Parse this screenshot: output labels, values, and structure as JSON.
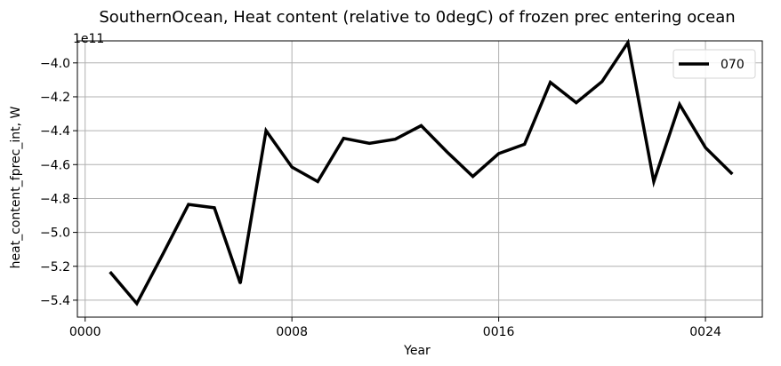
{
  "chart_data": {
    "type": "line",
    "title": "SouthernOcean, Heat content (relative to 0degC) of frozen prec entering ocean",
    "xlabel": "Year",
    "ylabel": "heat_content_fprec_int, W",
    "y_offset_text": "1e11",
    "xlim": [
      -0.3,
      26.2
    ],
    "ylim": [
      -5.5,
      -3.87
    ],
    "x_ticks": [
      {
        "value": 0,
        "label": "0000"
      },
      {
        "value": 8,
        "label": "0008"
      },
      {
        "value": 16,
        "label": "0016"
      },
      {
        "value": 24,
        "label": "0024"
      }
    ],
    "y_ticks": [
      {
        "value": -4.0,
        "label": "−4.0"
      },
      {
        "value": -4.2,
        "label": "−4.2"
      },
      {
        "value": -4.4,
        "label": "−4.4"
      },
      {
        "value": -4.6,
        "label": "−4.6"
      },
      {
        "value": -4.8,
        "label": "−4.8"
      },
      {
        "value": -5.0,
        "label": "−5.0"
      },
      {
        "value": -5.2,
        "label": "−5.2"
      },
      {
        "value": -5.4,
        "label": "−5.4"
      }
    ],
    "grid": true,
    "legend": {
      "position": "top-right"
    },
    "series": [
      {
        "name": "070",
        "color": "#000000",
        "x": [
          1,
          2,
          3,
          4,
          5,
          6,
          7,
          8,
          9,
          10,
          11,
          12,
          13,
          14,
          15,
          16,
          17,
          18,
          19,
          20,
          21,
          22,
          23,
          24,
          25
        ],
        "y": [
          -5.24,
          -5.42,
          -5.13,
          -4.835,
          -4.855,
          -5.3,
          -4.4,
          -4.615,
          -4.7,
          -4.445,
          -4.475,
          -4.45,
          -4.37,
          -4.525,
          -4.67,
          -4.535,
          -4.48,
          -4.115,
          -4.235,
          -4.11,
          -3.88,
          -4.7,
          -4.245,
          -4.5,
          -4.65
        ]
      }
    ]
  }
}
